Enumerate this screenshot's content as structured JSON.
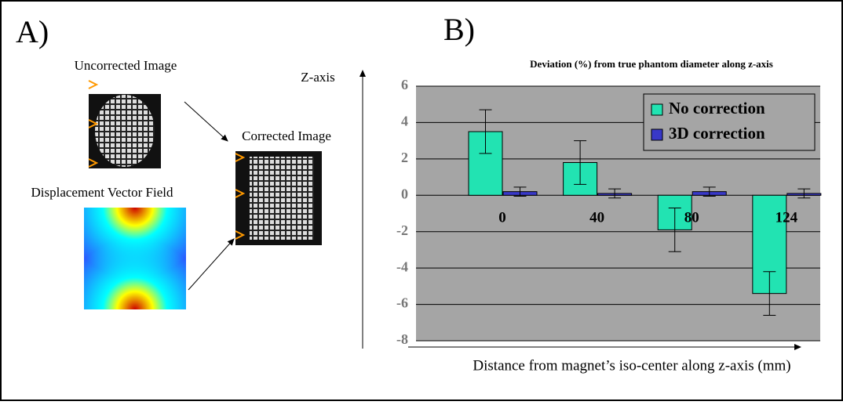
{
  "panel_a": {
    "label": "A)",
    "uncorrected": "Uncorrected Image",
    "corrected": "Corrected Image",
    "field": "Displacement Vector Field",
    "axis": "Z-axis"
  },
  "chart_data": {
    "type": "bar",
    "panel_label": "B)",
    "title": "Deviation (%) from true phantom diameter along z-axis",
    "x_label": "Distance from magnet’s iso-center along z-axis (mm)",
    "categories": [
      "0",
      "40",
      "80",
      "124"
    ],
    "series": [
      {
        "name": "No correction",
        "color": "#22e3b2",
        "values": [
          3.5,
          1.8,
          -1.9,
          -5.4
        ],
        "errors": [
          1.2,
          1.2,
          1.2,
          1.2
        ]
      },
      {
        "name": "3D correction",
        "color": "#3838c8",
        "values": [
          0.2,
          0.1,
          0.2,
          0.1
        ],
        "errors": [
          0.25,
          0.25,
          0.25,
          0.25
        ]
      }
    ],
    "ylim": [
      -8,
      6
    ],
    "yticks": [
      -8,
      -6,
      -4,
      -2,
      0,
      2,
      4,
      6
    ],
    "grid": true,
    "legend": "upper right"
  }
}
